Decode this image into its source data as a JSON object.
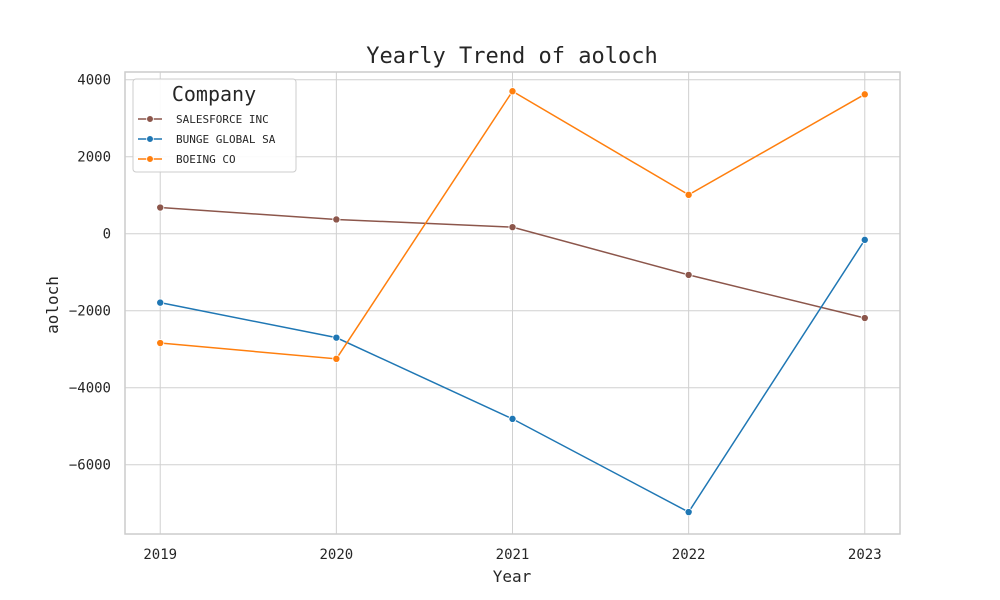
{
  "chart_data": {
    "type": "line",
    "title": "Yearly Trend of aoloch",
    "xlabel": "Year",
    "ylabel": "aoloch",
    "x": [
      2019,
      2020,
      2021,
      2022,
      2023
    ],
    "xlim": [
      2018.8,
      2023.2
    ],
    "ylim": [
      -7800,
      4200
    ],
    "yticks": [
      4000,
      2000,
      0,
      -2000,
      -4000,
      -6000
    ],
    "ytick_labels": [
      "4000",
      "2000",
      "0",
      "−2000",
      "−4000",
      "−6000"
    ],
    "xtick_labels": [
      "2019",
      "2020",
      "2021",
      "2022",
      "2023"
    ],
    "grid": true,
    "legend": {
      "title": "Company",
      "placement": "top-left"
    },
    "series": [
      {
        "name": "SALESFORCE INC",
        "color": "#8c564b",
        "values": [
          680,
          370,
          170,
          -1070,
          -2190
        ]
      },
      {
        "name": "BUNGE GLOBAL SA",
        "color": "#1f77b4",
        "values": [
          -1790,
          -2700,
          -4810,
          -7230,
          -160
        ]
      },
      {
        "name": "BOEING CO",
        "color": "#ff7f0e",
        "values": [
          -2840,
          -3250,
          3700,
          1010,
          3620
        ]
      }
    ]
  }
}
